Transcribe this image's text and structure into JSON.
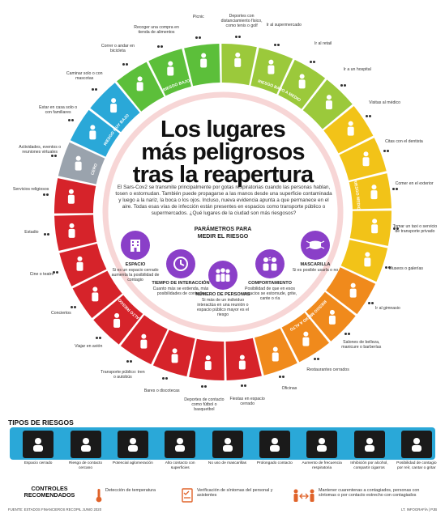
{
  "title": "Los lugares más peligrosos tras la reapertura",
  "title_lines": [
    "Los lugares",
    "más peligrosos",
    "tras la reapertura"
  ],
  "intro": "El Sars-Cov2 se transmite principalmente por gotas respiratorias cuando las personas hablan, tosen o estornudan. También puede propagarse a las manos desde una superficie contaminada y luego a la nariz, la boca o los ojos. Incluso, nueva evidencia apunta a que permanece en el aire. Todas esas vías de infección están presentes en espacios como transporte público o supermercados. ¿Qué lugares de la ciudad son más riesgosos?",
  "risk_levels": [
    {
      "label": "CERO",
      "color": "#9aa3ad"
    },
    {
      "label": "RIESGO MUY BAJO",
      "color": "#2aa8d8"
    },
    {
      "label": "RIESGO BAJO",
      "color": "#5cbf3a"
    },
    {
      "label": "RIESGO BAJO A MEDIO",
      "color": "#9bc93b"
    },
    {
      "label": "RIESGO MEDIO",
      "color": "#f2c318"
    },
    {
      "label": "RIESGO MEDIO A ALTO",
      "color": "#f08a1c"
    },
    {
      "label": "ALTO RIESGO",
      "color": "#d6232a"
    }
  ],
  "places": [
    "Actividades, eventos o reuniones virtuales",
    "Estar en casa solo o con familiares",
    "Caminar solo o con mascotas",
    "Correr o andar en bicicleta",
    "Recoger una compra en tienda de alimentos",
    "Picnic",
    "Deportes con distanciamiento físico, como tenis o golf",
    "Ir al supermercado",
    "Ir al retail",
    "Ir a un hospital",
    "Visitas al médico",
    "Citas con el dentista",
    "Comer en el exterior",
    "Tomar un taxi o servicio de transporte privado",
    "Museos o galerías",
    "Ir al gimnasio",
    "Salones de belleza, manicure o barberías",
    "Restaurantes cerrados",
    "Oficinas",
    "Fiestas en espacio cerrado",
    "Deportes de contacto como fútbol o basquetbol",
    "Bares o discotecas",
    "Transporte público: tren o autobús",
    "Viajar en avión",
    "Conciertos",
    "Cine o teatro",
    "Estadio",
    "Servicios religiosos"
  ],
  "params_title": "PARÁMETROS PARA MEDIR EL RIESGO",
  "params": [
    {
      "title": "ESPACIO",
      "desc": "Si es un espacio cerrado aumenta la posibilidad de contagio"
    },
    {
      "title": "TIEMPO DE INTERACCIÓN",
      "desc": "Cuanto más se extienda, más posibilidades de contagio"
    },
    {
      "title": "NÚMERO DE PERSONAS",
      "desc": "Si más de un individuo interactúa en una reunión o espacio público mayor es el riesgo"
    },
    {
      "title": "COMPORTAMIENTO",
      "desc": "Posibilidad de que en esos espacios se estornude, grite, cante o ría"
    },
    {
      "title": "MASCARILLA",
      "desc": "Si es posible usarla o no"
    }
  ],
  "risk_types_title": "TIPOS DE RIESGOS",
  "risk_types": [
    "Espacio cerrado",
    "Riesgo de contacto cercano",
    "Potencial aglomeración",
    "Alto contacto con superficies",
    "No uso de mascarillas",
    "Prolongado contacto",
    "Aumento de frecuencia respiratoria",
    "Inhibición por alcohol, compartir cigarros",
    "Posibilidad de contagio por reír, cantar o gritar"
  ],
  "controls_title": "CONTROLES RECOMENDADOS",
  "controls": [
    "Detección de temperatura",
    "Verificación de síntomas del personal y asistentes",
    "Mantener cuarentenas a contagiados, personas con síntomas o por contacto estrecho con contagiados"
  ],
  "source": "FUENTE: ESTADOS FINANCIEROS RECOPIL JUNIO 2020",
  "credit": "LT. INFOGRAFÍA | PJB",
  "colors": {
    "accent": "#8a3fc8",
    "band": "#2aa8d8"
  }
}
